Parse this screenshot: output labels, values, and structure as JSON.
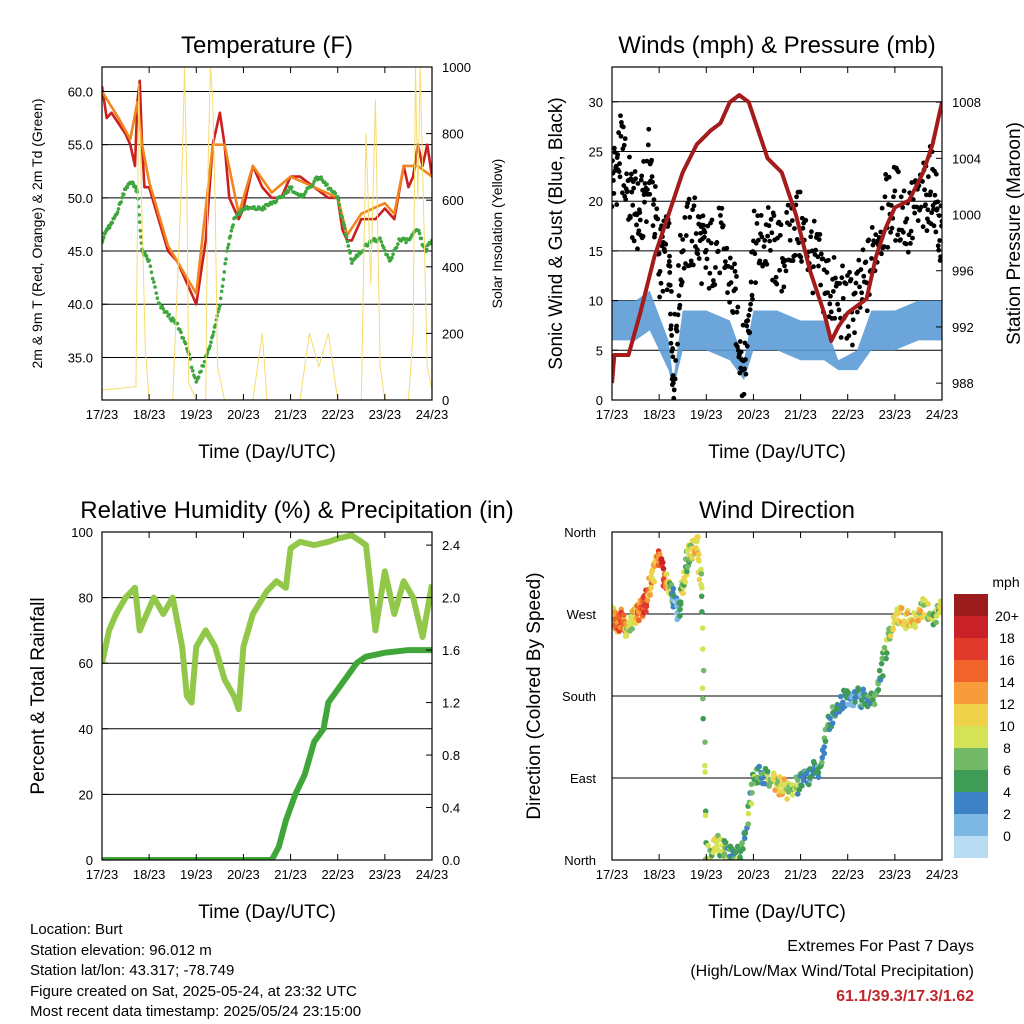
{
  "colors": {
    "red": "#cc1f1f",
    "orange": "#f2851d",
    "green": "#3fa63f",
    "yellow": "#f7dc6f",
    "blue": "#5b9bd5",
    "black": "#000000",
    "maroon": "#a31b1b",
    "rh_green": "#92c84a",
    "rain_green": "#41a63a",
    "extremes": "#c0272d"
  },
  "chart_data": [
    {
      "type": "line",
      "title": "Temperature (F)",
      "xlabel": "Time (Day/UTC)",
      "ylabel": "2m & 9m T (Red, Orange) & 2m Td (Green)",
      "y2label": "Solar Insolation (Yellow)",
      "x_ticks": [
        "17/23",
        "18/23",
        "19/23",
        "20/23",
        "21/23",
        "22/23",
        "23/23",
        "24/23"
      ],
      "xlim": [
        0,
        7
      ],
      "ylim": [
        31,
        62.3
      ],
      "y_ticks": [
        35.0,
        40.0,
        45.0,
        50.0,
        55.0,
        60.0
      ],
      "y2lim": [
        0,
        1000
      ],
      "y2_ticks": [
        0,
        200,
        400,
        600,
        800,
        1000
      ],
      "grid": "horizontal",
      "series": [
        {
          "axis": "left",
          "color_key": "red",
          "style": "line",
          "x": [
            0,
            0.1,
            0.2,
            0.35,
            0.5,
            0.6,
            0.7,
            0.75,
            0.8,
            0.85,
            0.9,
            1.0,
            1.2,
            1.4,
            1.6,
            1.8,
            2.0,
            2.2,
            2.35,
            2.5,
            2.6,
            2.7,
            2.8,
            2.9,
            3.0,
            3.2,
            3.4,
            3.6,
            3.8,
            4.0,
            4.2,
            4.5,
            4.8,
            5.0,
            5.1,
            5.2,
            5.3,
            5.5,
            5.8,
            6.0,
            6.2,
            6.4,
            6.5,
            6.6,
            6.7,
            6.8,
            6.9,
            7.0
          ],
          "y": [
            60.5,
            57.5,
            58,
            57,
            56,
            55,
            53,
            59,
            61,
            55,
            51,
            51,
            48,
            45,
            44,
            42,
            40,
            46,
            55,
            58,
            55,
            50,
            49,
            48,
            49,
            53,
            51,
            50,
            50,
            52,
            52,
            51,
            50,
            50,
            47,
            46,
            46,
            48,
            48,
            49,
            48,
            53,
            51,
            52,
            55,
            53,
            55,
            52
          ]
        },
        {
          "axis": "left",
          "color_key": "orange",
          "style": "line",
          "x": [
            0,
            0.35,
            0.6,
            0.75,
            0.85,
            1.0,
            1.4,
            1.8,
            2.0,
            2.35,
            2.6,
            2.9,
            3.2,
            3.6,
            4.0,
            4.5,
            5.0,
            5.2,
            5.5,
            6.0,
            6.2,
            6.4,
            6.7,
            7.0
          ],
          "y": [
            60,
            57.5,
            55.5,
            59,
            55,
            51.5,
            45.5,
            42.5,
            41,
            55,
            55,
            48.5,
            53,
            50.5,
            52,
            51,
            50,
            46.5,
            48.5,
            49.5,
            48.5,
            53,
            53,
            52
          ]
        },
        {
          "axis": "left",
          "color_key": "green",
          "style": "dots",
          "x": [
            0,
            0.1,
            0.2,
            0.35,
            0.5,
            0.65,
            0.75,
            0.85,
            1.0,
            1.2,
            1.4,
            1.6,
            1.8,
            2.0,
            2.2,
            2.35,
            2.5,
            2.65,
            2.8,
            3.0,
            3.2,
            3.4,
            3.6,
            3.8,
            4.0,
            4.2,
            4.4,
            4.6,
            4.8,
            5.0,
            5.15,
            5.3,
            5.5,
            5.7,
            5.9,
            6.1,
            6.3,
            6.5,
            6.7,
            6.85,
            7.0
          ],
          "y": [
            46,
            47,
            47.5,
            49,
            51,
            51.5,
            50.5,
            45,
            44,
            40,
            39,
            38,
            36,
            32.5,
            35,
            37,
            40,
            45,
            48,
            49,
            49,
            49,
            49.5,
            50,
            51,
            50,
            51,
            52,
            51,
            50,
            47,
            44,
            45,
            46,
            46,
            44,
            46,
            46,
            47,
            45,
            46
          ]
        },
        {
          "axis": "right",
          "color_key": "yellow",
          "style": "thin",
          "x": [
            0.0,
            0.72,
            0.78,
            0.84,
            0.92,
            1.0,
            1.5,
            1.7,
            1.75,
            1.8,
            1.84,
            2.0,
            2.2,
            2.25,
            2.3,
            2.35,
            2.4,
            2.45,
            2.6,
            2.7,
            3.2,
            3.4,
            3.5,
            3.6,
            4.2,
            4.4,
            4.6,
            4.8,
            5.0,
            5.5,
            5.6,
            5.7,
            5.8,
            5.9,
            6.0,
            6.5,
            6.6,
            6.65,
            6.7,
            6.75,
            6.9,
            7.0
          ],
          "y": [
            30,
            40,
            950,
            600,
            150,
            0,
            0,
            700,
            1000,
            650,
            50,
            0,
            0,
            700,
            1000,
            900,
            600,
            100,
            0,
            0,
            0,
            200,
            0,
            0,
            0,
            200,
            100,
            200,
            0,
            0,
            800,
            350,
            900,
            100,
            0,
            0,
            200,
            1000,
            600,
            1000,
            100,
            30
          ]
        }
      ]
    },
    {
      "type": "line",
      "title": "Winds (mph) & Pressure (mb)",
      "xlabel": "Time (Day/UTC)",
      "ylabel": "Sonic Wind & Gust (Blue, Black)",
      "y2label": "Station Pressure (Maroon)",
      "x_ticks": [
        "17/23",
        "18/23",
        "19/23",
        "20/23",
        "21/23",
        "22/23",
        "23/23",
        "24/23"
      ],
      "xlim": [
        0,
        7
      ],
      "ylim": [
        0,
        33.5
      ],
      "y_ticks": [
        0,
        5,
        10,
        15,
        20,
        25,
        30
      ],
      "y2lim": [
        986.8,
        1010.5
      ],
      "y2_ticks": [
        988,
        992,
        996,
        1000,
        1004,
        1008
      ],
      "grid": "horizontal",
      "series": [
        {
          "axis": "left",
          "color_key": "blue",
          "style": "band",
          "x": [
            0,
            0.5,
            0.8,
            1.2,
            1.3,
            1.5,
            2.0,
            2.5,
            2.8,
            3.0,
            3.5,
            4.0,
            4.5,
            4.8,
            5.2,
            5.5,
            6.0,
            6.5,
            7.0
          ],
          "y": [
            10,
            10,
            11,
            6,
            2,
            9,
            9,
            8,
            4,
            9,
            9,
            8,
            8,
            4,
            5,
            9,
            9,
            10,
            10
          ],
          "ylow": [
            6,
            6,
            7,
            3,
            1,
            5,
            5,
            4,
            2,
            5,
            5,
            4,
            4,
            3,
            3,
            5,
            5,
            6,
            6
          ]
        },
        {
          "axis": "left",
          "color_key": "black",
          "style": "dots",
          "x": [
            0,
            0.2,
            0.4,
            0.6,
            0.8,
            1.0,
            1.2,
            1.3,
            1.5,
            1.8,
            2.0,
            2.3,
            2.6,
            2.8,
            3.0,
            3.3,
            3.6,
            3.9,
            4.2,
            4.5,
            4.8,
            5.1,
            5.4,
            5.7,
            6.0,
            6.3,
            6.6,
            6.8,
            7.0
          ],
          "y": [
            22,
            25,
            20,
            18,
            24,
            14,
            15,
            3,
            16,
            17,
            14,
            16,
            10,
            3,
            15,
            16,
            14,
            18,
            15,
            12,
            10,
            9,
            12,
            18,
            20,
            18,
            20,
            22,
            15
          ]
        },
        {
          "axis": "right",
          "color_key": "maroon",
          "style": "thick",
          "x": [
            0,
            0.05,
            0.2,
            0.35,
            0.6,
            0.9,
            1.2,
            1.5,
            1.8,
            2.1,
            2.3,
            2.5,
            2.7,
            2.9,
            3.1,
            3.3,
            3.6,
            3.9,
            4.2,
            4.5,
            4.65,
            4.8,
            5.0,
            5.2,
            5.4,
            5.6,
            5.8,
            6.0,
            6.3,
            6.6,
            6.8,
            7.0
          ],
          "y": [
            988,
            990,
            990,
            990,
            993,
            997,
            1000,
            1003,
            1005,
            1006,
            1006.5,
            1008,
            1008.5,
            1008,
            1006,
            1004,
            1003,
            1000,
            996,
            993,
            991,
            992,
            993,
            993.5,
            994,
            997,
            999,
            1000.5,
            1001,
            1003,
            1005,
            1008
          ]
        }
      ]
    },
    {
      "type": "line",
      "title": "Relative Humidity (%) & Precipitation (in)",
      "xlabel": "Time (Day/UTC)",
      "ylabel": "Percent & Total Rainfall",
      "x_ticks": [
        "17/23",
        "18/23",
        "19/23",
        "20/23",
        "21/23",
        "22/23",
        "23/23",
        "24/23"
      ],
      "xlim": [
        0,
        7
      ],
      "ylim": [
        0,
        100
      ],
      "y_ticks": [
        0,
        20,
        40,
        60,
        80,
        100
      ],
      "y2lim": [
        0,
        2.5
      ],
      "y2_ticks": [
        0.0,
        0.4,
        0.8,
        1.2,
        1.6,
        2.0,
        2.4
      ],
      "grid": "horizontal",
      "series": [
        {
          "axis": "left",
          "color_key": "rh_green",
          "style": "thick",
          "x": [
            0,
            0.15,
            0.3,
            0.5,
            0.7,
            0.8,
            0.95,
            1.1,
            1.3,
            1.5,
            1.7,
            1.8,
            1.9,
            2.0,
            2.2,
            2.4,
            2.6,
            2.8,
            2.9,
            3.0,
            3.2,
            3.5,
            3.7,
            3.9,
            4.0,
            4.2,
            4.5,
            4.8,
            5.0,
            5.3,
            5.6,
            5.8,
            6.0,
            6.2,
            6.4,
            6.6,
            6.8,
            7.0
          ],
          "y": [
            60,
            70,
            75,
            80,
            83,
            70,
            75,
            80,
            75,
            80,
            65,
            50,
            48,
            65,
            70,
            65,
            55,
            50,
            46,
            65,
            75,
            82,
            85,
            83,
            95,
            97,
            96,
            97,
            98,
            99,
            96,
            70,
            88,
            75,
            85,
            80,
            68,
            84
          ]
        },
        {
          "axis": "right",
          "color_key": "rain_green",
          "style": "thick",
          "x": [
            0,
            3.6,
            3.75,
            3.9,
            4.1,
            4.3,
            4.5,
            4.7,
            4.8,
            5.0,
            5.2,
            5.4,
            5.6,
            6.0,
            6.5,
            7.0
          ],
          "y": [
            0,
            0,
            0.1,
            0.3,
            0.5,
            0.65,
            0.9,
            1.0,
            1.2,
            1.3,
            1.4,
            1.5,
            1.55,
            1.58,
            1.6,
            1.6
          ]
        }
      ]
    },
    {
      "type": "scatter",
      "title": "Wind Direction",
      "xlabel": "Time (Day/UTC)",
      "ylabel": "Direction (Colored By Speed)",
      "x_ticks": [
        "17/23",
        "18/23",
        "19/23",
        "20/23",
        "21/23",
        "22/23",
        "23/23",
        "24/23"
      ],
      "xlim": [
        0,
        7
      ],
      "ylim": [
        0,
        360
      ],
      "y_tick_labels": [
        "North",
        "East",
        "South",
        "West",
        "North"
      ],
      "y_tick_values": [
        0,
        90,
        180,
        270,
        360
      ],
      "grid": "horizontal",
      "colorbar": {
        "title": "mph",
        "labels": [
          "20+",
          "18",
          "16",
          "14",
          "12",
          "10",
          "8",
          "6",
          "4",
          "2",
          "0"
        ],
        "colors": [
          "#9a1c1c",
          "#c92128",
          "#e03a2d",
          "#f0632b",
          "#f79b3b",
          "#f0d24a",
          "#d4e256",
          "#74b968",
          "#3f9c57",
          "#3c82c4",
          "#7db7e3",
          "#b9dcf3"
        ]
      },
      "x": [
        0,
        0.1,
        0.2,
        0.3,
        0.4,
        0.5,
        0.6,
        0.7,
        0.8,
        0.9,
        1.0,
        1.1,
        1.2,
        1.3,
        1.4,
        1.5,
        1.6,
        1.7,
        1.8,
        1.9,
        2.0,
        2.2,
        2.4,
        2.6,
        2.8,
        3.0,
        3.2,
        3.4,
        3.6,
        3.8,
        4.0,
        4.2,
        4.4,
        4.6,
        4.8,
        5.0,
        5.2,
        5.4,
        5.6,
        5.8,
        6.0,
        6.2,
        6.4,
        6.6,
        6.8,
        7.0
      ],
      "y": [
        270,
        260,
        265,
        255,
        260,
        270,
        275,
        280,
        300,
        320,
        330,
        310,
        300,
        290,
        270,
        300,
        330,
        340,
        350,
        300,
        0,
        20,
        10,
        0,
        20,
        90,
        95,
        85,
        80,
        75,
        85,
        95,
        100,
        150,
        170,
        180,
        180,
        175,
        180,
        230,
        270,
        265,
        260,
        280,
        265,
        280
      ],
      "speed": [
        10,
        14,
        16,
        12,
        10,
        12,
        16,
        18,
        14,
        12,
        16,
        18,
        10,
        4,
        2,
        10,
        8,
        10,
        12,
        8,
        8,
        10,
        6,
        8,
        6,
        8,
        6,
        10,
        12,
        8,
        6,
        4,
        6,
        6,
        6,
        4,
        4,
        6,
        6,
        8,
        10,
        12,
        12,
        10,
        8,
        10
      ]
    }
  ],
  "info": {
    "location": "Location: Burt",
    "elevation": "Station elevation: 96.012 m",
    "latlon": "Station lat/lon: 43.317; -78.749",
    "created": "Figure created on Sat, 2025-05-24, at 23:32 UTC",
    "recent": "Most recent data timestamp: 2025/05/24 23:15:00",
    "extremes_title": "Extremes For Past 7 Days",
    "extremes_subtitle": "(High/Low/Max Wind/Total Precipitation)",
    "extremes_values": "61.1/39.3/17.3/1.62"
  }
}
